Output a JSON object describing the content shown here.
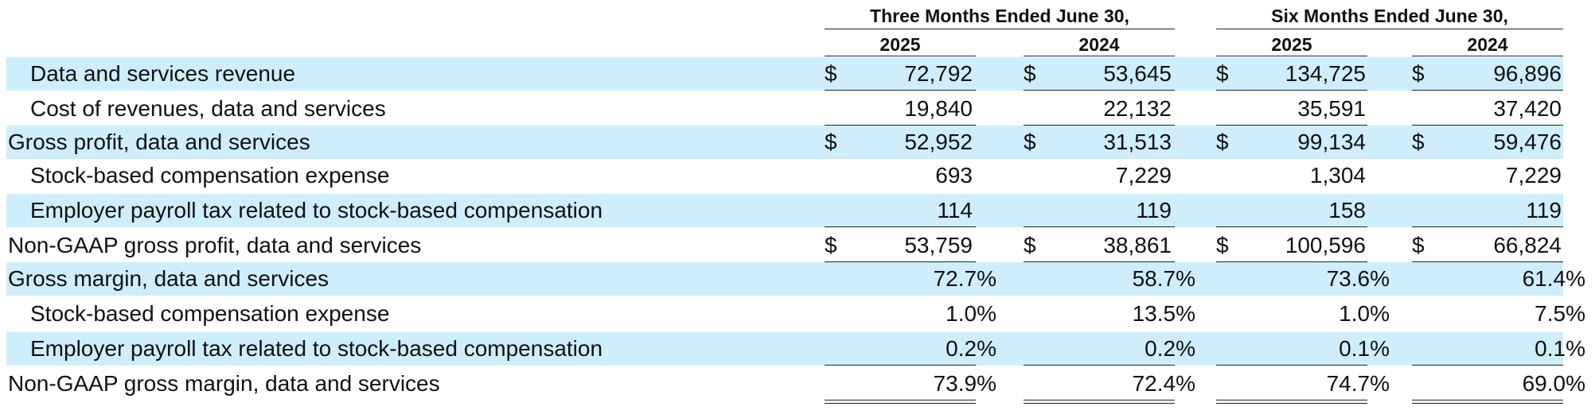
{
  "header": {
    "three_months": "Three Months Ended June 30,",
    "six_months": "Six Months Ended June 30,",
    "years": [
      "2025",
      "2024",
      "2025",
      "2024"
    ]
  },
  "rows": [
    {
      "label": "Data and services revenue",
      "indent": true,
      "shaded": true,
      "dollar": true,
      "values": [
        "72,792",
        "53,645",
        "134,725",
        "96,896"
      ],
      "rule": "single"
    },
    {
      "label": "Cost of revenues, data and services",
      "indent": true,
      "shaded": false,
      "dollar": false,
      "values": [
        "19,840",
        "22,132",
        "35,591",
        "37,420"
      ],
      "rule": "single"
    },
    {
      "label": "Gross profit, data and services",
      "indent": false,
      "shaded": true,
      "dollar": true,
      "values": [
        "52,952",
        "31,513",
        "99,134",
        "59,476"
      ],
      "rule": "none"
    },
    {
      "label": "Stock-based compensation expense",
      "indent": true,
      "shaded": false,
      "dollar": false,
      "values": [
        "693",
        "7,229",
        "1,304",
        "7,229"
      ],
      "rule": "none"
    },
    {
      "label": "Employer payroll tax related to stock-based compensation",
      "indent": true,
      "shaded": true,
      "dollar": false,
      "values": [
        "114",
        "119",
        "158",
        "119"
      ],
      "rule": "single"
    },
    {
      "label": "Non-GAAP gross profit, data and services",
      "indent": false,
      "shaded": false,
      "dollar": true,
      "values": [
        "53,759",
        "38,861",
        "100,596",
        "66,824"
      ],
      "rule": "double"
    },
    {
      "label": "Gross margin, data and services",
      "indent": false,
      "shaded": true,
      "dollar": false,
      "values": [
        "72.7%",
        "58.7%",
        "73.6%",
        "61.4%"
      ],
      "rule": "none"
    },
    {
      "label": "Stock-based compensation expense",
      "indent": true,
      "shaded": false,
      "dollar": false,
      "values": [
        "1.0%",
        "13.5%",
        "1.0%",
        "7.5%"
      ],
      "rule": "none"
    },
    {
      "label": "Employer payroll tax related to stock-based compensation",
      "indent": true,
      "shaded": true,
      "dollar": false,
      "values": [
        "0.2%",
        "0.2%",
        "0.1%",
        "0.1%"
      ],
      "rule": "single"
    },
    {
      "label": "Non-GAAP gross margin, data and services",
      "indent": false,
      "shaded": false,
      "dollar": false,
      "values": [
        "73.9%",
        "72.4%",
        "74.7%",
        "69.0%"
      ],
      "rule": "double"
    }
  ],
  "currency_symbol": "$"
}
